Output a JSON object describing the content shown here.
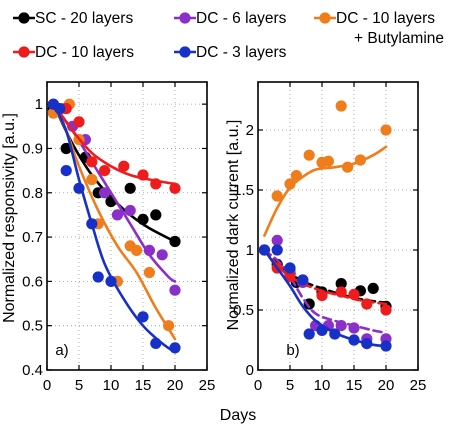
{
  "chart_data": [
    {
      "type": "scatter",
      "panel_label": "a)",
      "xlabel": "Days",
      "ylabel": "Normalized responsivity [a.u.]",
      "xlim": [
        0,
        25
      ],
      "ylim": [
        0.4,
        1.05
      ],
      "xticks": [
        0,
        5,
        10,
        15,
        20,
        25
      ],
      "yticks": [
        0.4,
        0.5,
        0.6,
        0.7,
        0.8,
        0.9,
        1
      ],
      "ytick_labels": [
        "0.4",
        "0.5",
        "0.6",
        "0.7",
        "0.8",
        "0.9",
        "1"
      ],
      "grid": true,
      "series": [
        {
          "name": "SC - 20 layers",
          "color": "#000000",
          "line_style": "solid",
          "points": [
            [
              1,
              0.99
            ],
            [
              3,
              0.9
            ],
            [
              6,
              0.88
            ],
            [
              8,
              0.8
            ],
            [
              10,
              0.78
            ],
            [
              13,
              0.81
            ],
            [
              15,
              0.74
            ],
            [
              17,
              0.75
            ],
            [
              20,
              0.69
            ]
          ],
          "fit": [
            [
              1,
              1.0
            ],
            [
              4,
              0.91
            ],
            [
              7,
              0.84
            ],
            [
              10,
              0.79
            ],
            [
              13,
              0.75
            ],
            [
              16,
              0.72
            ],
            [
              20,
              0.69
            ]
          ]
        },
        {
          "name": "DC - 6 layers",
          "color": "#8b2fc9",
          "line_style": "solid",
          "points": [
            [
              1,
              0.98
            ],
            [
              4,
              0.95
            ],
            [
              6,
              0.92
            ],
            [
              9,
              0.8
            ],
            [
              11,
              0.75
            ],
            [
              13,
              0.76
            ],
            [
              16,
              0.67
            ],
            [
              18,
              0.66
            ],
            [
              20,
              0.58
            ]
          ],
          "fit": [
            [
              1,
              1.0
            ],
            [
              4,
              0.94
            ],
            [
              7,
              0.87
            ],
            [
              10,
              0.8
            ],
            [
              13,
              0.73
            ],
            [
              16,
              0.66
            ],
            [
              19,
              0.61
            ],
            [
              20,
              0.6
            ]
          ]
        },
        {
          "name": "DC - 10 layers\n+ Butylamine",
          "color": "#f07d1c",
          "line_style": "solid",
          "points": [
            [
              1,
              0.98
            ],
            [
              2.5,
              0.99
            ],
            [
              3.5,
              1.0
            ],
            [
              5,
              0.92
            ],
            [
              7,
              0.83
            ],
            [
              8,
              0.73
            ],
            [
              11,
              0.6
            ],
            [
              13,
              0.68
            ],
            [
              14,
              0.67
            ],
            [
              16,
              0.62
            ],
            [
              19,
              0.5
            ]
          ],
          "fit": [
            [
              1,
              1.0
            ],
            [
              3,
              0.94
            ],
            [
              5,
              0.86
            ],
            [
              8,
              0.76
            ],
            [
              11,
              0.68
            ],
            [
              14,
              0.62
            ],
            [
              17,
              0.54
            ],
            [
              20,
              0.47
            ]
          ]
        },
        {
          "name": "DC - 10 layers",
          "color": "#ee1c1c",
          "line_style": "solid",
          "points": [
            [
              1,
              1.0
            ],
            [
              3,
              0.99
            ],
            [
              5,
              0.96
            ],
            [
              7,
              0.87
            ],
            [
              9,
              0.85
            ],
            [
              12,
              0.86
            ],
            [
              15,
              0.84
            ],
            [
              17,
              0.82
            ],
            [
              20,
              0.81
            ]
          ],
          "fit": [
            [
              1,
              1.0
            ],
            [
              4,
              0.94
            ],
            [
              7,
              0.89
            ],
            [
              10,
              0.86
            ],
            [
              13,
              0.84
            ],
            [
              16,
              0.83
            ],
            [
              20,
              0.82
            ]
          ]
        },
        {
          "name": "DC - 3 layers",
          "color": "#1630c8",
          "line_style": "solid",
          "points": [
            [
              1,
              1.0
            ],
            [
              2,
              0.99
            ],
            [
              3,
              0.85
            ],
            [
              5,
              0.81
            ],
            [
              7,
              0.73
            ],
            [
              8,
              0.61
            ],
            [
              10,
              0.6
            ],
            [
              15,
              0.52
            ],
            [
              17,
              0.46
            ],
            [
              20,
              0.45
            ]
          ],
          "fit": [
            [
              1,
              1.0
            ],
            [
              3,
              0.94
            ],
            [
              5,
              0.83
            ],
            [
              7,
              0.73
            ],
            [
              9,
              0.64
            ],
            [
              12,
              0.56
            ],
            [
              15,
              0.5
            ],
            [
              18,
              0.46
            ],
            [
              20,
              0.44
            ]
          ]
        }
      ]
    },
    {
      "type": "scatter",
      "panel_label": "b)",
      "xlabel": "Days",
      "ylabel": "Normalized dark current [a.u.]",
      "xlim": [
        0,
        25
      ],
      "ylim": [
        0,
        2.4
      ],
      "xticks": [
        0,
        5,
        10,
        15,
        20,
        25
      ],
      "yticks": [
        0,
        0.5,
        1,
        1.5,
        2
      ],
      "ytick_labels": [
        "0",
        "0.5",
        "1",
        "1.5",
        "2"
      ],
      "grid": true,
      "series": [
        {
          "name": "SC - 20 layers",
          "color": "#000000",
          "line_style": "dashed",
          "points": [
            [
              3,
              0.88
            ],
            [
              5,
              0.8
            ],
            [
              6,
              0.73
            ],
            [
              8,
              0.55
            ],
            [
              10,
              0.65
            ],
            [
              13,
              0.72
            ],
            [
              16,
              0.66
            ],
            [
              18,
              0.68
            ],
            [
              20,
              0.53
            ]
          ],
          "fit": [
            [
              1,
              1.0
            ],
            [
              4,
              0.84
            ],
            [
              7,
              0.74
            ],
            [
              10,
              0.68
            ],
            [
              13,
              0.63
            ],
            [
              16,
              0.59
            ],
            [
              20,
              0.56
            ]
          ]
        },
        {
          "name": "DC - 6 layers",
          "color": "#8b2fc9",
          "line_style": "dashed",
          "points": [
            [
              1,
              1.0
            ],
            [
              3,
              1.08
            ],
            [
              5,
              0.83
            ],
            [
              7,
              0.73
            ],
            [
              9,
              0.37
            ],
            [
              11,
              0.37
            ],
            [
              13,
              0.37
            ],
            [
              15,
              0.35
            ],
            [
              17,
              0.26
            ],
            [
              20,
              0.26
            ]
          ],
          "fit": [
            [
              1,
              1.0
            ],
            [
              4,
              0.86
            ],
            [
              7,
              0.6
            ],
            [
              9,
              0.47
            ],
            [
              12,
              0.41
            ],
            [
              15,
              0.37
            ],
            [
              18,
              0.33
            ],
            [
              20,
              0.31
            ]
          ]
        },
        {
          "name": "DC - 10 layers\n+ Butylamine",
          "color": "#f07d1c",
          "line_style": "solid",
          "points": [
            [
              1,
              1.0
            ],
            [
              3,
              1.45
            ],
            [
              5,
              1.55
            ],
            [
              6,
              1.62
            ],
            [
              8,
              1.79
            ],
            [
              10,
              1.73
            ],
            [
              11,
              1.74
            ],
            [
              13,
              2.2
            ],
            [
              14,
              1.69
            ],
            [
              16,
              1.75
            ],
            [
              20,
              2.0
            ]
          ],
          "fit": [
            [
              1,
              1.12
            ],
            [
              3,
              1.35
            ],
            [
              5,
              1.52
            ],
            [
              7,
              1.61
            ],
            [
              9,
              1.67
            ],
            [
              12,
              1.69
            ],
            [
              15,
              1.72
            ],
            [
              18,
              1.79
            ],
            [
              20,
              1.86
            ]
          ]
        },
        {
          "name": "DC - 10 layers",
          "color": "#ee1c1c",
          "line_style": "dashed",
          "points": [
            [
              3,
              0.85
            ],
            [
              5,
              0.78
            ],
            [
              7,
              0.75
            ],
            [
              10,
              0.62
            ],
            [
              13,
              0.65
            ],
            [
              15,
              0.63
            ],
            [
              17,
              0.55
            ],
            [
              20,
              0.5
            ]
          ],
          "fit": [
            [
              1,
              1.0
            ],
            [
              4,
              0.82
            ],
            [
              7,
              0.72
            ],
            [
              10,
              0.66
            ],
            [
              13,
              0.62
            ],
            [
              16,
              0.58
            ],
            [
              20,
              0.55
            ]
          ]
        },
        {
          "name": "DC - 3 layers",
          "color": "#1630c8",
          "line_style": "solid",
          "points": [
            [
              1,
              1.0
            ],
            [
              3,
              1.0
            ],
            [
              5,
              0.85
            ],
            [
              7,
              0.75
            ],
            [
              8,
              0.3
            ],
            [
              10,
              0.33
            ],
            [
              12,
              0.3
            ],
            [
              15,
              0.25
            ],
            [
              17,
              0.22
            ],
            [
              20,
              0.2
            ]
          ],
          "fit": [
            [
              1,
              1.0
            ],
            [
              3,
              0.85
            ],
            [
              5,
              0.7
            ],
            [
              7,
              0.53
            ],
            [
              9,
              0.41
            ],
            [
              12,
              0.31
            ],
            [
              15,
              0.25
            ],
            [
              18,
              0.21
            ],
            [
              20,
              0.2
            ]
          ]
        }
      ]
    }
  ],
  "shared_xlabel": "Days",
  "legend": [
    {
      "name": "SC - 20 layers",
      "color": "#000000"
    },
    {
      "name": "DC - 6 layers",
      "color": "#8b2fc9"
    },
    {
      "name": "DC - 10 layers",
      "name_line2": "+ Butylamine",
      "color": "#f07d1c"
    },
    {
      "name": "DC - 10 layers",
      "color": "#ee1c1c"
    },
    {
      "name": "DC - 3 layers",
      "color": "#1630c8"
    }
  ]
}
